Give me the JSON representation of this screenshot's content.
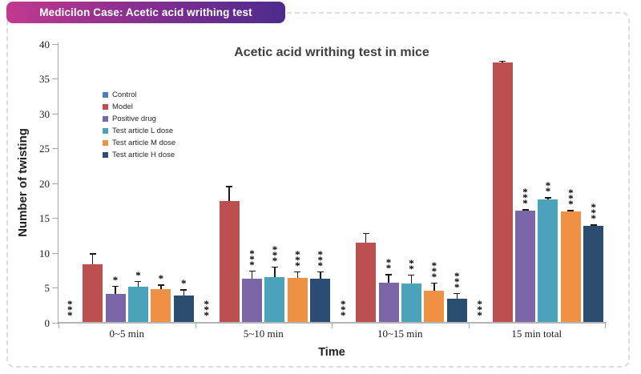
{
  "header": {
    "badge_label": "Medicilon Case: Acetic acid writhing test",
    "badge_gradient": [
      "#c2398f",
      "#4c2b8c"
    ]
  },
  "chart_data": {
    "type": "bar",
    "title": "Acetic acid writhing test in mice",
    "xlabel": "Time",
    "ylabel": "Number of twisting",
    "ylim": [
      0,
      40
    ],
    "ytick_step": 5,
    "grid": false,
    "legend_position": "inside-upper-left",
    "error_bars": "upper-whisker",
    "categories": [
      "0~5 min",
      "5~10 min",
      "10~15 min",
      "15 min total"
    ],
    "series": [
      {
        "name": "Control",
        "color": "#4a7ebb",
        "values": [
          0,
          0,
          0,
          0
        ],
        "errors": [
          0,
          0,
          0,
          0
        ],
        "sig": [
          "***",
          "***",
          "***",
          "***"
        ]
      },
      {
        "name": "Model",
        "color": "#bc4f4f",
        "values": [
          8.4,
          17.5,
          11.5,
          37.3
        ],
        "errors": [
          1.6,
          2.1,
          1.4,
          0.3
        ],
        "sig": [
          "",
          "",
          "",
          ""
        ]
      },
      {
        "name": "Positive drug",
        "color": "#7a66a6",
        "values": [
          4.1,
          6.3,
          5.7,
          16.1
        ],
        "errors": [
          1.2,
          1.2,
          1.3,
          0.2
        ],
        "sig": [
          "*",
          "***",
          "**",
          "***"
        ]
      },
      {
        "name": "Test article L dose",
        "color": "#4aa3ba",
        "values": [
          5.2,
          6.6,
          5.6,
          17.7
        ],
        "errors": [
          0.8,
          1.5,
          1.3,
          0.3
        ],
        "sig": [
          "*",
          "***",
          "**",
          "**"
        ]
      },
      {
        "name": "Test article M dose",
        "color": "#ef9145",
        "values": [
          4.8,
          6.4,
          4.6,
          16.0
        ],
        "errors": [
          0.7,
          1.0,
          1.2,
          0.2
        ],
        "sig": [
          "*",
          "***",
          "***",
          "***"
        ]
      },
      {
        "name": "Test article H dose",
        "color": "#2b4d71",
        "values": [
          3.9,
          6.3,
          3.5,
          13.9
        ],
        "errors": [
          0.9,
          1.1,
          0.8,
          0.2
        ],
        "sig": [
          "*",
          "***",
          "***",
          "***"
        ]
      }
    ]
  }
}
